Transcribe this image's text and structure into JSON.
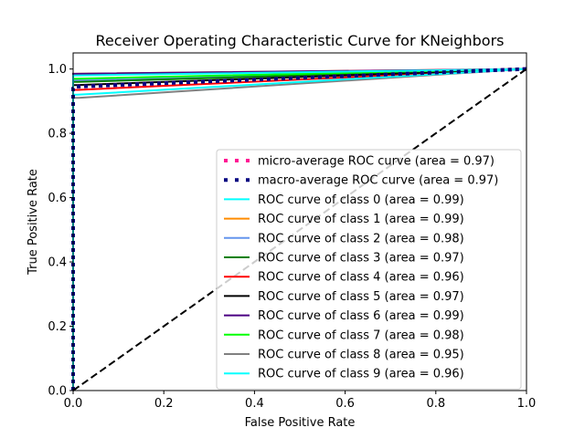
{
  "chart_data": {
    "type": "line",
    "title": "Receiver Operating Characteristic Curve for KNeighbors",
    "xlabel": "False Positive Rate",
    "ylabel": "True Positive Rate",
    "xlim": [
      0.0,
      1.0
    ],
    "ylim": [
      0.0,
      1.05
    ],
    "x_ticks": [
      "0.0",
      "0.2",
      "0.4",
      "0.6",
      "0.8",
      "1.0"
    ],
    "y_ticks": [
      "0.0",
      "0.2",
      "0.4",
      "0.6",
      "0.8",
      "1.0"
    ],
    "grid": false,
    "legend_position": "lower-right",
    "series": [
      {
        "name": "micro-average ROC curve (area = 0.97)",
        "color": "#ff1493",
        "style": "dotted",
        "x": [
          0.0,
          0.0,
          0.004,
          1.0
        ],
        "y": [
          0.0,
          0.94,
          0.945,
          1.0
        ]
      },
      {
        "name": "macro-average ROC curve (area = 0.97)",
        "color": "#000080",
        "style": "dotted",
        "x": [
          0.0,
          0.0,
          0.004,
          1.0
        ],
        "y": [
          0.0,
          0.94,
          0.945,
          1.0
        ]
      },
      {
        "name": "ROC curve of class 0 (area = 0.99)",
        "color": "#00ffff",
        "style": "solid",
        "x": [
          0.0,
          0.0,
          0.005,
          1.0
        ],
        "y": [
          0.0,
          0.98,
          0.98,
          1.0
        ]
      },
      {
        "name": "ROC curve of class 1 (area = 0.99)",
        "color": "#ff8c00",
        "style": "solid",
        "x": [
          0.0,
          0.0,
          0.005,
          1.0
        ],
        "y": [
          0.0,
          0.985,
          0.985,
          1.0
        ]
      },
      {
        "name": "ROC curve of class 2 (area = 0.98)",
        "color": "#6495ed",
        "style": "solid",
        "x": [
          0.0,
          0.0,
          0.008,
          1.0
        ],
        "y": [
          0.0,
          0.965,
          0.965,
          1.0
        ]
      },
      {
        "name": "ROC curve of class 3 (area = 0.97)",
        "color": "#008000",
        "style": "solid",
        "x": [
          0.0,
          0.0,
          0.01,
          1.0
        ],
        "y": [
          0.0,
          0.96,
          0.96,
          1.0
        ]
      },
      {
        "name": "ROC curve of class 4 (area = 0.96)",
        "color": "#ff0000",
        "style": "solid",
        "x": [
          0.0,
          0.0,
          0.01,
          1.0
        ],
        "y": [
          0.0,
          0.935,
          0.935,
          1.0
        ]
      },
      {
        "name": "ROC curve of class 5 (area = 0.97)",
        "color": "#000000",
        "style": "solid",
        "x": [
          0.0,
          0.0,
          0.006,
          1.0
        ],
        "y": [
          0.0,
          0.95,
          0.95,
          1.0
        ]
      },
      {
        "name": "ROC curve of class 6 (area = 0.99)",
        "color": "#4b0082",
        "style": "solid",
        "x": [
          0.0,
          0.0,
          0.004,
          1.0
        ],
        "y": [
          0.0,
          0.985,
          0.985,
          1.0
        ]
      },
      {
        "name": "ROC curve of class 7 (area = 0.98)",
        "color": "#00ff00",
        "style": "solid",
        "x": [
          0.0,
          0.0,
          0.008,
          1.0
        ],
        "y": [
          0.0,
          0.97,
          0.97,
          1.0
        ]
      },
      {
        "name": "ROC curve of class 8 (area = 0.95)",
        "color": "#808080",
        "style": "solid",
        "x": [
          0.0,
          0.0,
          0.012,
          1.0
        ],
        "y": [
          0.0,
          0.91,
          0.91,
          1.0
        ]
      },
      {
        "name": "ROC curve of class 9 (area = 0.96)",
        "color": "#00ffff",
        "style": "solid",
        "x": [
          0.0,
          0.0,
          0.01,
          1.0
        ],
        "y": [
          0.0,
          0.92,
          0.92,
          1.0
        ]
      }
    ],
    "diagonal": {
      "color": "#000000",
      "style": "dashed",
      "x": [
        0.0,
        1.0
      ],
      "y": [
        0.0,
        1.0
      ]
    }
  }
}
